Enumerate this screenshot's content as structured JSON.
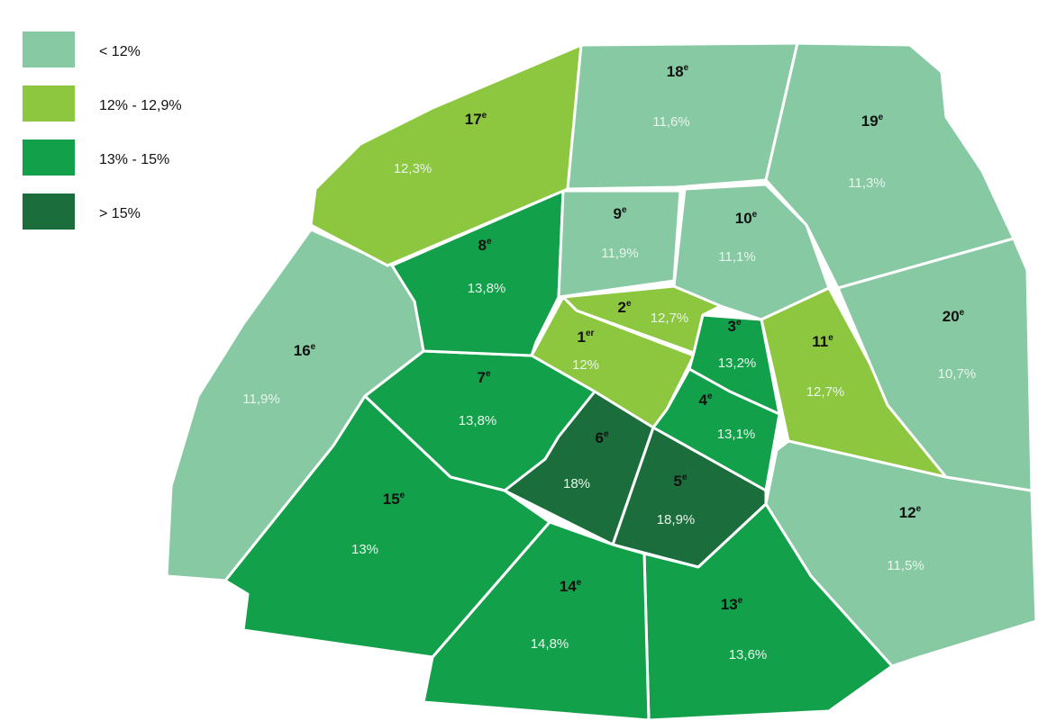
{
  "legend": [
    {
      "label": "< 12%",
      "color": "#86c9a3"
    },
    {
      "label": "12% - 12,9%",
      "color": "#8dc63f"
    },
    {
      "label": "13% - 15%",
      "color": "#12a04b"
    },
    {
      "label": "> 15%",
      "color": "#1b6e3b"
    }
  ],
  "districts": [
    {
      "number": "1",
      "suffix": "er",
      "value": "12%",
      "class": 1
    },
    {
      "number": "2",
      "suffix": "e",
      "value": "12,7%",
      "class": 1
    },
    {
      "number": "3",
      "suffix": "e",
      "value": "13,2%",
      "class": 2
    },
    {
      "number": "4",
      "suffix": "e",
      "value": "13,1%",
      "class": 2
    },
    {
      "number": "5",
      "suffix": "e",
      "value": "18,9%",
      "class": 3
    },
    {
      "number": "6",
      "suffix": "e",
      "value": "18%",
      "class": 3
    },
    {
      "number": "7",
      "suffix": "e",
      "value": "13,8%",
      "class": 2
    },
    {
      "number": "8",
      "suffix": "e",
      "value": "13,8%",
      "class": 2
    },
    {
      "number": "9",
      "suffix": "e",
      "value": "11,9%",
      "class": 0
    },
    {
      "number": "10",
      "suffix": "e",
      "value": "11,1%",
      "class": 0
    },
    {
      "number": "11",
      "suffix": "e",
      "value": "12,7%",
      "class": 1
    },
    {
      "number": "12",
      "suffix": "e",
      "value": "11,5%",
      "class": 0
    },
    {
      "number": "13",
      "suffix": "e",
      "value": "13,6%",
      "class": 2
    },
    {
      "number": "14",
      "suffix": "e",
      "value": "14,8%",
      "class": 2
    },
    {
      "number": "15",
      "suffix": "e",
      "value": "13%",
      "class": 2
    },
    {
      "number": "16",
      "suffix": "e",
      "value": "11,9%",
      "class": 0
    },
    {
      "number": "17",
      "suffix": "e",
      "value": "12,3%",
      "class": 1
    },
    {
      "number": "18",
      "suffix": "e",
      "value": "11,6%",
      "class": 0
    },
    {
      "number": "19",
      "suffix": "e",
      "value": "11,3%",
      "class": 0
    },
    {
      "number": "20",
      "suffix": "e",
      "value": "10,7%",
      "class": 0
    }
  ]
}
